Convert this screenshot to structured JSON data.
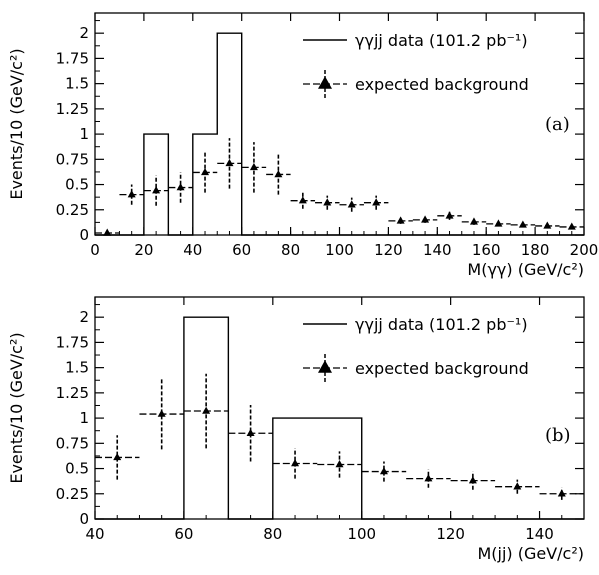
{
  "chart_data": [
    {
      "type": "histogram",
      "panel_label": "(a)",
      "xlabel": "M(γγ) (GeV/c²)",
      "ylabel": "Events/10 (GeV/c²)",
      "xlim": [
        0,
        200
      ],
      "ylim": [
        0,
        2.2
      ],
      "x_ticks": [
        0,
        20,
        40,
        60,
        80,
        100,
        120,
        140,
        160,
        180,
        200
      ],
      "y_ticks": [
        0,
        0.25,
        0.5,
        0.75,
        1,
        1.25,
        1.5,
        1.75,
        2
      ],
      "y_tick_labels": [
        "0",
        "0.25",
        "0.5",
        "0.75",
        "1",
        "1.25",
        "1.5",
        "1.75",
        "2"
      ],
      "legend": [
        {
          "label": "γγjj data (101.2 pb⁻¹)",
          "style": "histogram"
        },
        {
          "label": "expected background",
          "style": "triangle-marker"
        }
      ],
      "series": [
        {
          "name": "γγjj data (101.2 pb⁻¹)",
          "style": "histogram",
          "bin_edges": [
            0,
            10,
            20,
            30,
            40,
            50,
            60,
            70,
            80,
            90,
            100,
            110,
            120,
            130,
            140,
            150,
            160,
            170,
            180,
            190,
            200
          ],
          "values": [
            0,
            0,
            1,
            0,
            1,
            2,
            0,
            0,
            0,
            0,
            0,
            0,
            0,
            0,
            0,
            0,
            0,
            0,
            0,
            0
          ]
        },
        {
          "name": "expected background",
          "style": "triangle-errorbar",
          "x": [
            5,
            15,
            25,
            35,
            45,
            55,
            65,
            75,
            85,
            95,
            105,
            115,
            125,
            135,
            145,
            155,
            165,
            175,
            185,
            195
          ],
          "y": [
            0.02,
            0.4,
            0.44,
            0.47,
            0.62,
            0.71,
            0.67,
            0.6,
            0.34,
            0.32,
            0.3,
            0.32,
            0.14,
            0.15,
            0.19,
            0.13,
            0.11,
            0.1,
            0.09,
            0.08
          ],
          "yerr": [
            0.01,
            0.1,
            0.15,
            0.15,
            0.2,
            0.25,
            0.25,
            0.2,
            0.08,
            0.07,
            0.07,
            0.07,
            0.03,
            0.03,
            0.04,
            0.03,
            0.02,
            0.02,
            0.02,
            0.02
          ],
          "xerr": 5
        }
      ]
    },
    {
      "type": "histogram",
      "panel_label": "(b)",
      "xlabel": "M(jj) (GeV/c²)",
      "ylabel": "Events/10 (GeV/c²)",
      "xlim": [
        40,
        150
      ],
      "ylim": [
        0,
        2.2
      ],
      "x_ticks": [
        40,
        60,
        80,
        100,
        120,
        140
      ],
      "y_ticks": [
        0,
        0.25,
        0.5,
        0.75,
        1,
        1.25,
        1.5,
        1.75,
        2
      ],
      "y_tick_labels": [
        "0",
        "0.25",
        "0.5",
        "0.75",
        "1",
        "1.25",
        "1.5",
        "1.75",
        "2"
      ],
      "legend": [
        {
          "label": "γγjj data (101.2 pb⁻¹)",
          "style": "histogram"
        },
        {
          "label": "expected background",
          "style": "triangle-marker"
        }
      ],
      "series": [
        {
          "name": "γγjj data (101.2 pb⁻¹)",
          "style": "histogram",
          "bin_edges": [
            40,
            50,
            60,
            70,
            80,
            90,
            100,
            110,
            120,
            130,
            140,
            150
          ],
          "values": [
            0,
            0,
            2,
            0,
            1,
            1,
            0,
            0,
            0,
            0,
            0
          ]
        },
        {
          "name": "expected background",
          "style": "triangle-errorbar",
          "x": [
            45,
            55,
            65,
            75,
            85,
            95,
            105,
            115,
            125,
            135,
            145
          ],
          "y": [
            0.61,
            1.04,
            1.07,
            0.85,
            0.55,
            0.54,
            0.47,
            0.4,
            0.38,
            0.32,
            0.25
          ],
          "yerr": [
            0.22,
            0.35,
            0.37,
            0.28,
            0.15,
            0.13,
            0.1,
            0.09,
            0.09,
            0.07,
            0.06
          ],
          "xerr": 5
        }
      ]
    }
  ]
}
